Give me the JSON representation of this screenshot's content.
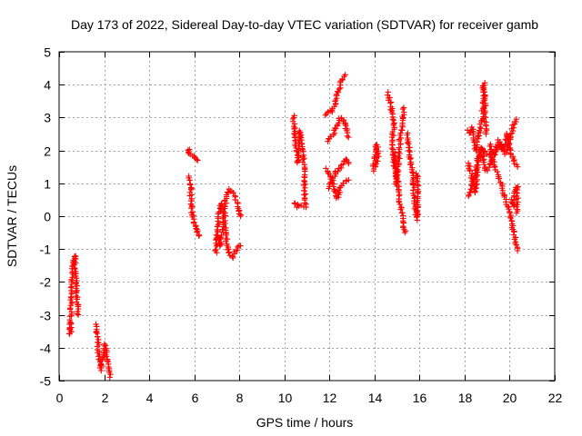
{
  "chart_data": {
    "type": "scatter",
    "title": "Day 173 of 2022, Sidereal Day-to-day VTEC variation (SDTVAR) for receiver gamb",
    "xlabel": "GPS time / hours",
    "ylabel": "SDTVAR / TECUs",
    "xlim": [
      0,
      22
    ],
    "ylim": [
      -5,
      5
    ],
    "xticks": [
      "0",
      "2",
      "4",
      "6",
      "8",
      "10",
      "12",
      "14",
      "16",
      "18",
      "20",
      "22"
    ],
    "yticks": [
      "-5",
      "-4",
      "-3",
      "-2",
      "-1",
      "0",
      "1",
      "2",
      "3",
      "4",
      "5"
    ],
    "grid": true,
    "marker": "plus",
    "color": "#ff0000",
    "series": [
      {
        "name": "SDTVAR",
        "traces": [
          [
            [
              0.45,
              -3.3
            ],
            [
              0.5,
              -3.6
            ],
            [
              0.55,
              -2.2
            ],
            [
              0.6,
              -1.5
            ],
            [
              0.7,
              -1.2
            ],
            [
              0.75,
              -2.0
            ],
            [
              0.8,
              -2.6
            ],
            [
              0.85,
              -3.0
            ]
          ],
          [
            [
              1.65,
              -3.3
            ],
            [
              1.75,
              -4.1
            ],
            [
              1.85,
              -4.7
            ],
            [
              1.95,
              -4.3
            ],
            [
              2.05,
              -3.9
            ],
            [
              2.15,
              -4.5
            ],
            [
              2.25,
              -4.9
            ]
          ],
          [
            [
              5.75,
              2.05
            ],
            [
              5.8,
              1.9
            ],
            [
              5.9,
              1.85
            ],
            [
              6.05,
              1.75
            ],
            [
              6.15,
              1.7
            ]
          ],
          [
            [
              5.8,
              1.2
            ],
            [
              5.85,
              0.6
            ],
            [
              5.9,
              0.1
            ],
            [
              6.0,
              -0.2
            ],
            [
              6.1,
              -0.4
            ],
            [
              6.2,
              -0.6
            ]
          ],
          [
            [
              6.95,
              -1.1
            ],
            [
              7.05,
              -0.4
            ],
            [
              7.1,
              0.1
            ],
            [
              7.2,
              0.4
            ],
            [
              7.3,
              0.0
            ],
            [
              7.4,
              -0.6
            ],
            [
              7.5,
              -1.1
            ],
            [
              7.7,
              -1.25
            ],
            [
              7.9,
              -1.0
            ],
            [
              8.05,
              -0.9
            ]
          ],
          [
            [
              7.0,
              -0.6
            ],
            [
              7.15,
              -0.9
            ],
            [
              7.3,
              -0.2
            ],
            [
              7.4,
              0.5
            ],
            [
              7.55,
              0.8
            ],
            [
              7.75,
              0.7
            ],
            [
              7.95,
              0.3
            ],
            [
              8.05,
              0.0
            ]
          ],
          [
            [
              10.4,
              3.05
            ],
            [
              10.5,
              2.3
            ],
            [
              10.6,
              1.6
            ],
            [
              10.7,
              2.6
            ],
            [
              10.85,
              1.7
            ],
            [
              10.9,
              0.8
            ],
            [
              10.95,
              0.3
            ],
            [
              10.6,
              0.3
            ],
            [
              10.45,
              0.4
            ]
          ],
          [
            [
              11.9,
              2.3
            ],
            [
              12.05,
              2.4
            ],
            [
              12.2,
              2.55
            ],
            [
              12.35,
              2.8
            ],
            [
              12.5,
              3.0
            ],
            [
              12.7,
              2.85
            ],
            [
              12.85,
              2.4
            ]
          ],
          [
            [
              11.85,
              3.1
            ],
            [
              12.0,
              3.2
            ],
            [
              12.1,
              3.2
            ],
            [
              12.25,
              3.4
            ],
            [
              12.35,
              3.7
            ],
            [
              12.5,
              4.1
            ],
            [
              12.7,
              4.3
            ]
          ],
          [
            [
              11.85,
              1.45
            ],
            [
              12.0,
              1.3
            ],
            [
              12.2,
              0.9
            ],
            [
              12.35,
              0.55
            ],
            [
              12.5,
              0.9
            ],
            [
              12.7,
              1.05
            ],
            [
              12.85,
              1.1
            ]
          ],
          [
            [
              11.95,
              0.85
            ],
            [
              12.15,
              1.1
            ],
            [
              12.3,
              1.35
            ],
            [
              12.5,
              1.5
            ],
            [
              12.7,
              1.75
            ],
            [
              12.85,
              1.6
            ]
          ],
          [
            [
              13.95,
              1.4
            ],
            [
              14.0,
              1.7
            ],
            [
              14.05,
              2.0
            ],
            [
              14.1,
              2.2
            ],
            [
              14.15,
              1.8
            ],
            [
              14.05,
              1.5
            ]
          ],
          [
            [
              14.6,
              3.75
            ],
            [
              14.75,
              3.3
            ],
            [
              14.85,
              2.8
            ],
            [
              14.8,
              2.2
            ],
            [
              14.9,
              1.7
            ],
            [
              14.95,
              1.2
            ],
            [
              15.0,
              0.9
            ],
            [
              15.05,
              1.5
            ],
            [
              15.15,
              2.4
            ],
            [
              15.25,
              3.0
            ],
            [
              15.3,
              3.3
            ]
          ],
          [
            [
              14.8,
              1.9
            ],
            [
              15.0,
              1.2
            ],
            [
              15.1,
              0.6
            ],
            [
              15.3,
              -0.35
            ],
            [
              15.35,
              -0.5
            ]
          ],
          [
            [
              15.45,
              2.5
            ],
            [
              15.55,
              2.0
            ],
            [
              15.6,
              1.6
            ],
            [
              15.7,
              1.2
            ],
            [
              15.75,
              0.7
            ],
            [
              15.8,
              0.3
            ],
            [
              15.9,
              -0.1
            ],
            [
              15.95,
              0.9
            ],
            [
              15.85,
              1.3
            ]
          ],
          [
            [
              18.15,
              2.6
            ],
            [
              18.25,
              2.5
            ],
            [
              18.35,
              2.7
            ],
            [
              18.5,
              2.0
            ],
            [
              18.6,
              2.4
            ],
            [
              18.8,
              3.0
            ],
            [
              18.85,
              4.05
            ],
            [
              18.95,
              2.5
            ]
          ],
          [
            [
              18.15,
              1.6
            ],
            [
              18.3,
              1.3
            ],
            [
              18.5,
              0.7
            ],
            [
              18.6,
              1.8
            ],
            [
              18.75,
              2.1
            ],
            [
              18.9,
              1.4
            ]
          ],
          [
            [
              18.2,
              0.6
            ],
            [
              18.3,
              0.9
            ],
            [
              18.45,
              1.3
            ],
            [
              18.6,
              1.7
            ],
            [
              18.8,
              2.0
            ],
            [
              19.0,
              1.9
            ],
            [
              19.2,
              1.8
            ],
            [
              19.4,
              1.4
            ],
            [
              19.6,
              1.0
            ],
            [
              19.8,
              0.5
            ],
            [
              20.0,
              0.1
            ],
            [
              20.15,
              -0.4
            ],
            [
              20.3,
              -0.9
            ],
            [
              20.35,
              -1.05
            ]
          ],
          [
            [
              19.0,
              1.4
            ],
            [
              19.2,
              1.7
            ],
            [
              19.4,
              2.0
            ],
            [
              19.6,
              2.2
            ],
            [
              19.8,
              1.9
            ],
            [
              20.0,
              2.3
            ],
            [
              20.15,
              2.7
            ],
            [
              20.3,
              2.95
            ]
          ],
          [
            [
              19.1,
              2.2
            ],
            [
              19.3,
              1.9
            ],
            [
              19.5,
              2.3
            ],
            [
              19.7,
              2.0
            ],
            [
              19.9,
              2.5
            ],
            [
              20.1,
              1.8
            ],
            [
              20.25,
              1.6
            ],
            [
              20.35,
              1.5
            ]
          ],
          [
            [
              20.05,
              0.5
            ],
            [
              20.15,
              0.3
            ],
            [
              20.25,
              0.8
            ],
            [
              20.35,
              0.9
            ],
            [
              20.3,
              0.1
            ]
          ]
        ]
      }
    ]
  }
}
